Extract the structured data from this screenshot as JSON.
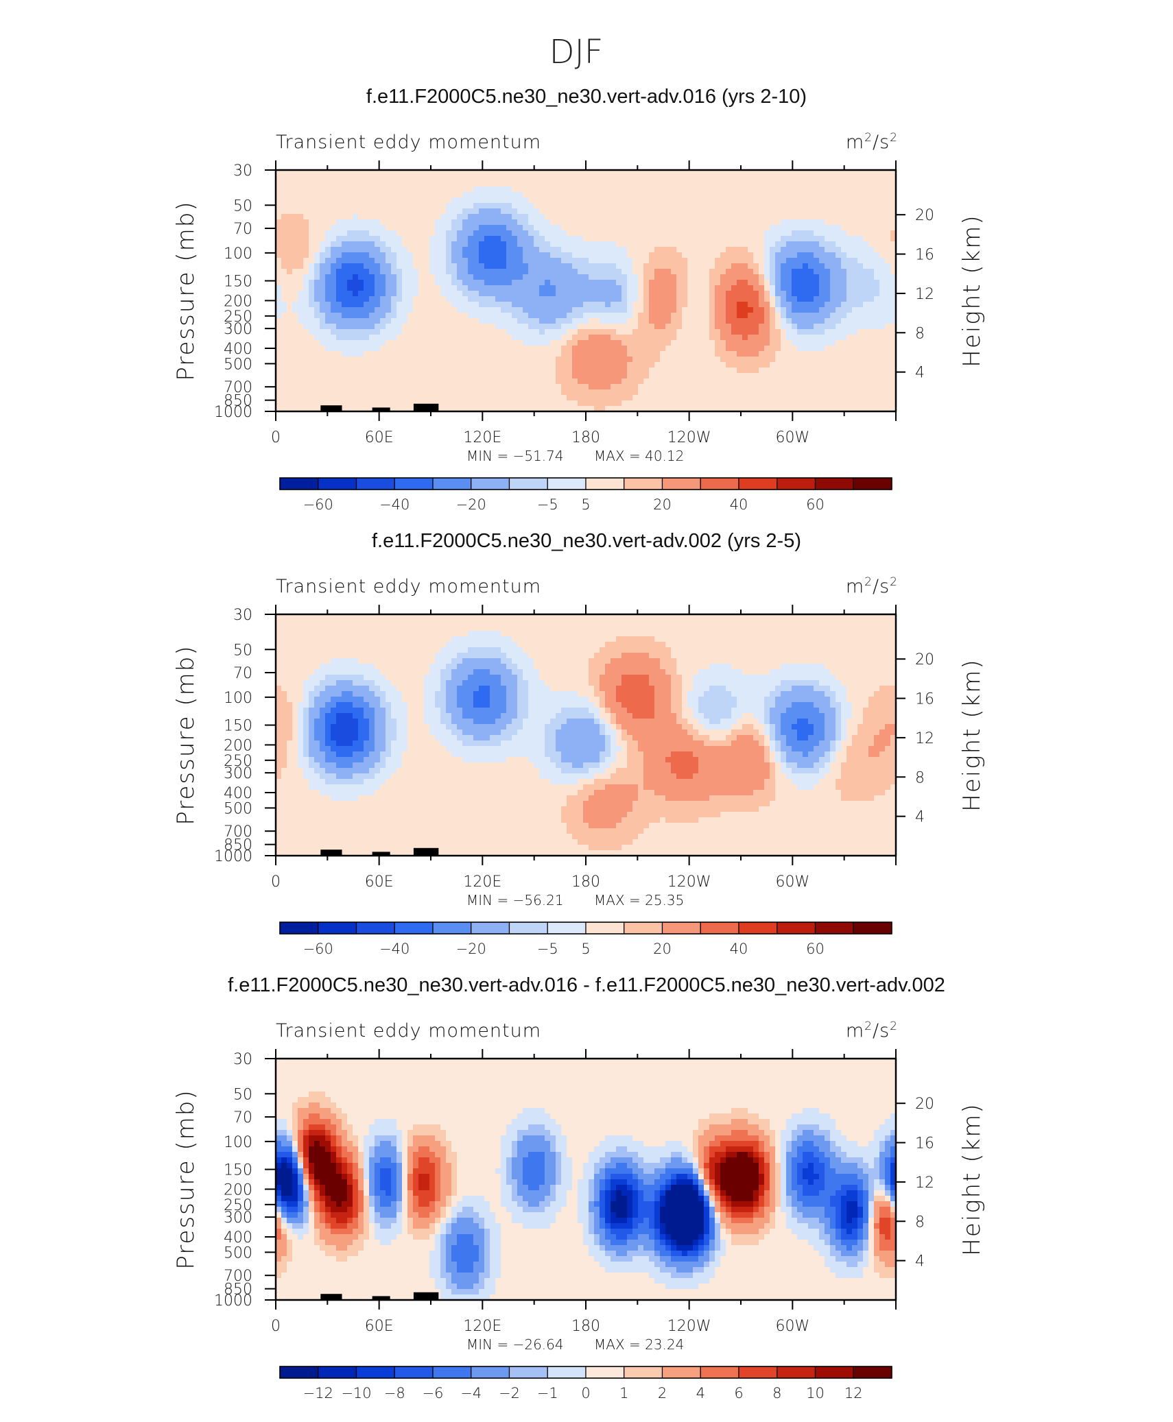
{
  "figure": {
    "title": "DJF"
  },
  "chart_data": [
    {
      "type": "heatmap",
      "title": "f.e11.F2000C5.ne30_ne30.vert-adv.016 (yrs 2-10)",
      "left_label": "Transient eddy momentum",
      "units": "m²/s²",
      "ylabel": "Pressure (mb)",
      "y2label": "Height (km)",
      "x_ticks": [
        "0",
        "60E",
        "120E",
        "180",
        "120W",
        "60W"
      ],
      "y_ticks": [
        "30",
        "50",
        "70",
        "100",
        "150",
        "200",
        "250",
        "300",
        "400",
        "500",
        "700",
        "850",
        "1000"
      ],
      "y2_ticks": [
        "20",
        "16",
        "12",
        "8",
        "4"
      ],
      "min_label": "MIN = −51.74",
      "max_label": "MAX = 40.12",
      "min": -51.74,
      "max": 40.12,
      "colorbar_labels": [
        "−60",
        "−40",
        "−20",
        "−5",
        "5",
        "20",
        "40",
        "60"
      ],
      "features": [
        {
          "lon": 45,
          "p": 160,
          "value": -45
        },
        {
          "lon": 125,
          "p": 100,
          "value": -38
        },
        {
          "lon": 160,
          "p": 180,
          "value": -22
        },
        {
          "lon": 200,
          "p": 200,
          "value": -20
        },
        {
          "lon": 225,
          "p": 200,
          "value": 25
        },
        {
          "lon": 244,
          "p": 220,
          "value": -18
        },
        {
          "lon": 272,
          "p": 220,
          "value": 35
        },
        {
          "lon": 305,
          "p": 160,
          "value": -42
        },
        {
          "lon": 188,
          "p": 420,
          "value": 18
        },
        {
          "lon": 10,
          "p": 110,
          "value": 10
        },
        {
          "lon": 350,
          "p": 150,
          "value": -10
        }
      ]
    },
    {
      "type": "heatmap",
      "title": "f.e11.F2000C5.ne30_ne30.vert-adv.002 (yrs 2-5)",
      "left_label": "Transient eddy momentum",
      "units": "m²/s²",
      "ylabel": "Pressure (mb)",
      "y2label": "Height (km)",
      "x_ticks": [
        "0",
        "60E",
        "120E",
        "180",
        "120W",
        "60W"
      ],
      "y_ticks": [
        "30",
        "50",
        "70",
        "100",
        "150",
        "200",
        "250",
        "300",
        "400",
        "500",
        "700",
        "850",
        "1000"
      ],
      "y2_ticks": [
        "20",
        "16",
        "12",
        "8",
        "4"
      ],
      "min_label": "MIN = −56.21",
      "max_label": "MAX = 25.35",
      "min": -56.21,
      "max": 25.35,
      "colorbar_labels": [
        "−60",
        "−40",
        "−20",
        "−5",
        "5",
        "20",
        "40",
        "60"
      ],
      "features": [
        {
          "lon": 40,
          "p": 160,
          "value": -50
        },
        {
          "lon": 120,
          "p": 100,
          "value": -35
        },
        {
          "lon": 180,
          "p": 200,
          "value": -25
        },
        {
          "lon": 208,
          "p": 100,
          "value": 25
        },
        {
          "lon": 238,
          "p": 250,
          "value": 22
        },
        {
          "lon": 256,
          "p": 140,
          "value": -18
        },
        {
          "lon": 275,
          "p": 220,
          "value": 22
        },
        {
          "lon": 305,
          "p": 160,
          "value": -38
        },
        {
          "lon": 190,
          "p": 420,
          "value": 15
        },
        {
          "lon": 4,
          "p": 150,
          "value": 8
        },
        {
          "lon": 335,
          "p": 250,
          "value": 8
        }
      ]
    },
    {
      "type": "heatmap",
      "title": "f.e11.F2000C5.ne30_ne30.vert-adv.016 - f.e11.F2000C5.ne30_ne30.vert-adv.002",
      "left_label": "Transient eddy momentum",
      "units": "m²/s²",
      "ylabel": "Pressure (mb)",
      "y2label": "Height (km)",
      "x_ticks": [
        "0",
        "60E",
        "120E",
        "180",
        "120W",
        "60W"
      ],
      "y_ticks": [
        "30",
        "50",
        "70",
        "100",
        "150",
        "200",
        "250",
        "300",
        "400",
        "500",
        "700",
        "850",
        "1000"
      ],
      "y2_ticks": [
        "20",
        "16",
        "12",
        "8",
        "4"
      ],
      "min_label": "MIN = −26.64",
      "max_label": "MAX = 23.24",
      "min": -26.64,
      "max": 23.24,
      "colorbar_labels": [
        "−12",
        "−10",
        "−8",
        "−6",
        "−4",
        "−2",
        "−1",
        "0",
        "1",
        "2",
        "4",
        "6",
        "8",
        "10",
        "12"
      ],
      "features": [
        {
          "lon": 7,
          "p": 180,
          "value": -20
        },
        {
          "lon": 22,
          "p": 130,
          "value": 16
        },
        {
          "lon": 38,
          "p": 220,
          "value": 12
        },
        {
          "lon": 65,
          "p": 180,
          "value": -8
        },
        {
          "lon": 85,
          "p": 180,
          "value": 9
        },
        {
          "lon": 150,
          "p": 150,
          "value": -6
        },
        {
          "lon": 200,
          "p": 250,
          "value": -14
        },
        {
          "lon": 228,
          "p": 300,
          "value": -8
        },
        {
          "lon": 240,
          "p": 280,
          "value": -24
        },
        {
          "lon": 255,
          "p": 170,
          "value": 10
        },
        {
          "lon": 273,
          "p": 170,
          "value": 16
        },
        {
          "lon": 310,
          "p": 160,
          "value": -9
        },
        {
          "lon": 335,
          "p": 280,
          "value": -12
        },
        {
          "lon": 355,
          "p": 300,
          "value": 10
        },
        {
          "lon": 110,
          "p": 500,
          "value": -6
        }
      ]
    }
  ]
}
